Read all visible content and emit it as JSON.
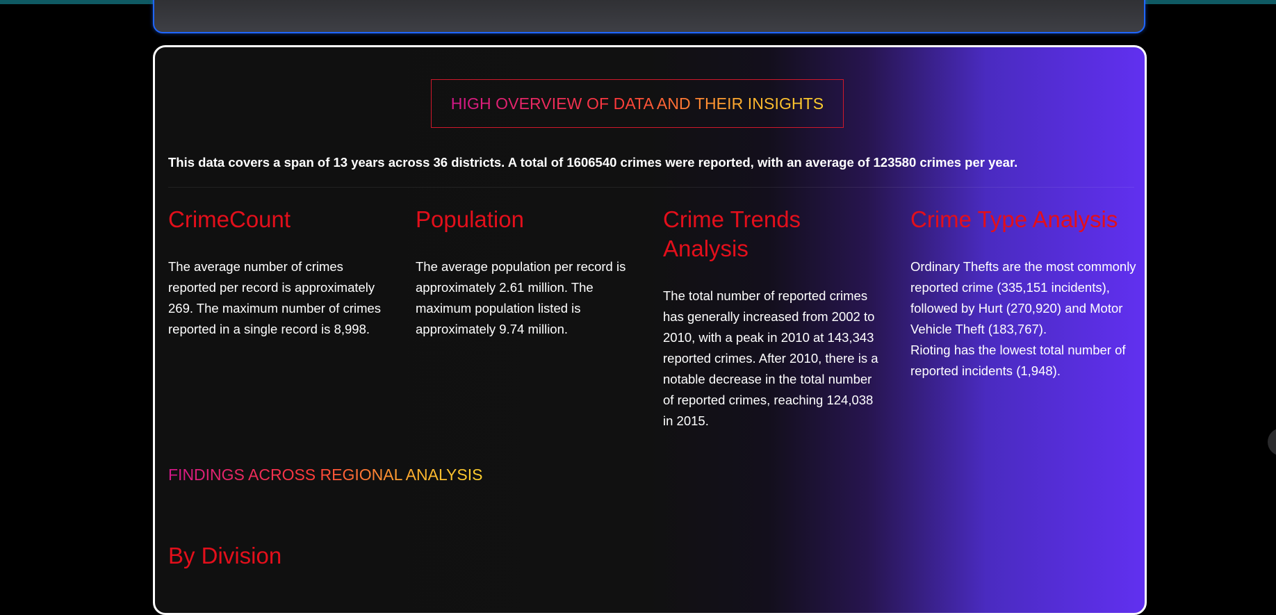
{
  "header": {
    "title": "HIGH OVERVIEW OF DATA AND THEIR INSIGHTS"
  },
  "summary": "This data covers a span of 13 years across 36 districts. A total of 1606540 crimes were reported, with an average of 123580 crimes per year.",
  "insights": [
    {
      "heading": "CrimeCount",
      "text": "The average number of crimes reported per record is approximately 269. The maximum number of crimes reported in a single record is 8,998."
    },
    {
      "heading": "Population",
      "text": "The average population per record is approximately 2.61 million. The maximum population listed is approximately 9.74 million."
    },
    {
      "heading": "Crime Trends Analysis",
      "text": "The total number of reported crimes has generally increased from 2002 to 2010, with a peak in 2010 at 143,343 reported crimes. After 2010, there is a notable decrease in the total number of reported crimes, reaching 124,038 in 2015."
    },
    {
      "heading": "Crime Type Analysis",
      "text": "Ordinary Thefts are the most commonly reported crime (335,151 incidents), followed by Hurt (270,920) and Motor Vehicle Theft (183,767).",
      "text2": "Rioting has the lowest total number of reported incidents (1,948)."
    }
  ],
  "regional": {
    "title": "FINDINGS ACROSS REGIONAL ANALYSIS",
    "subheading": "By Division"
  },
  "colors": {
    "heading_red": "#e30f1b",
    "accent_purple": "#6130f0",
    "top_card_border": "#1f66ff"
  }
}
